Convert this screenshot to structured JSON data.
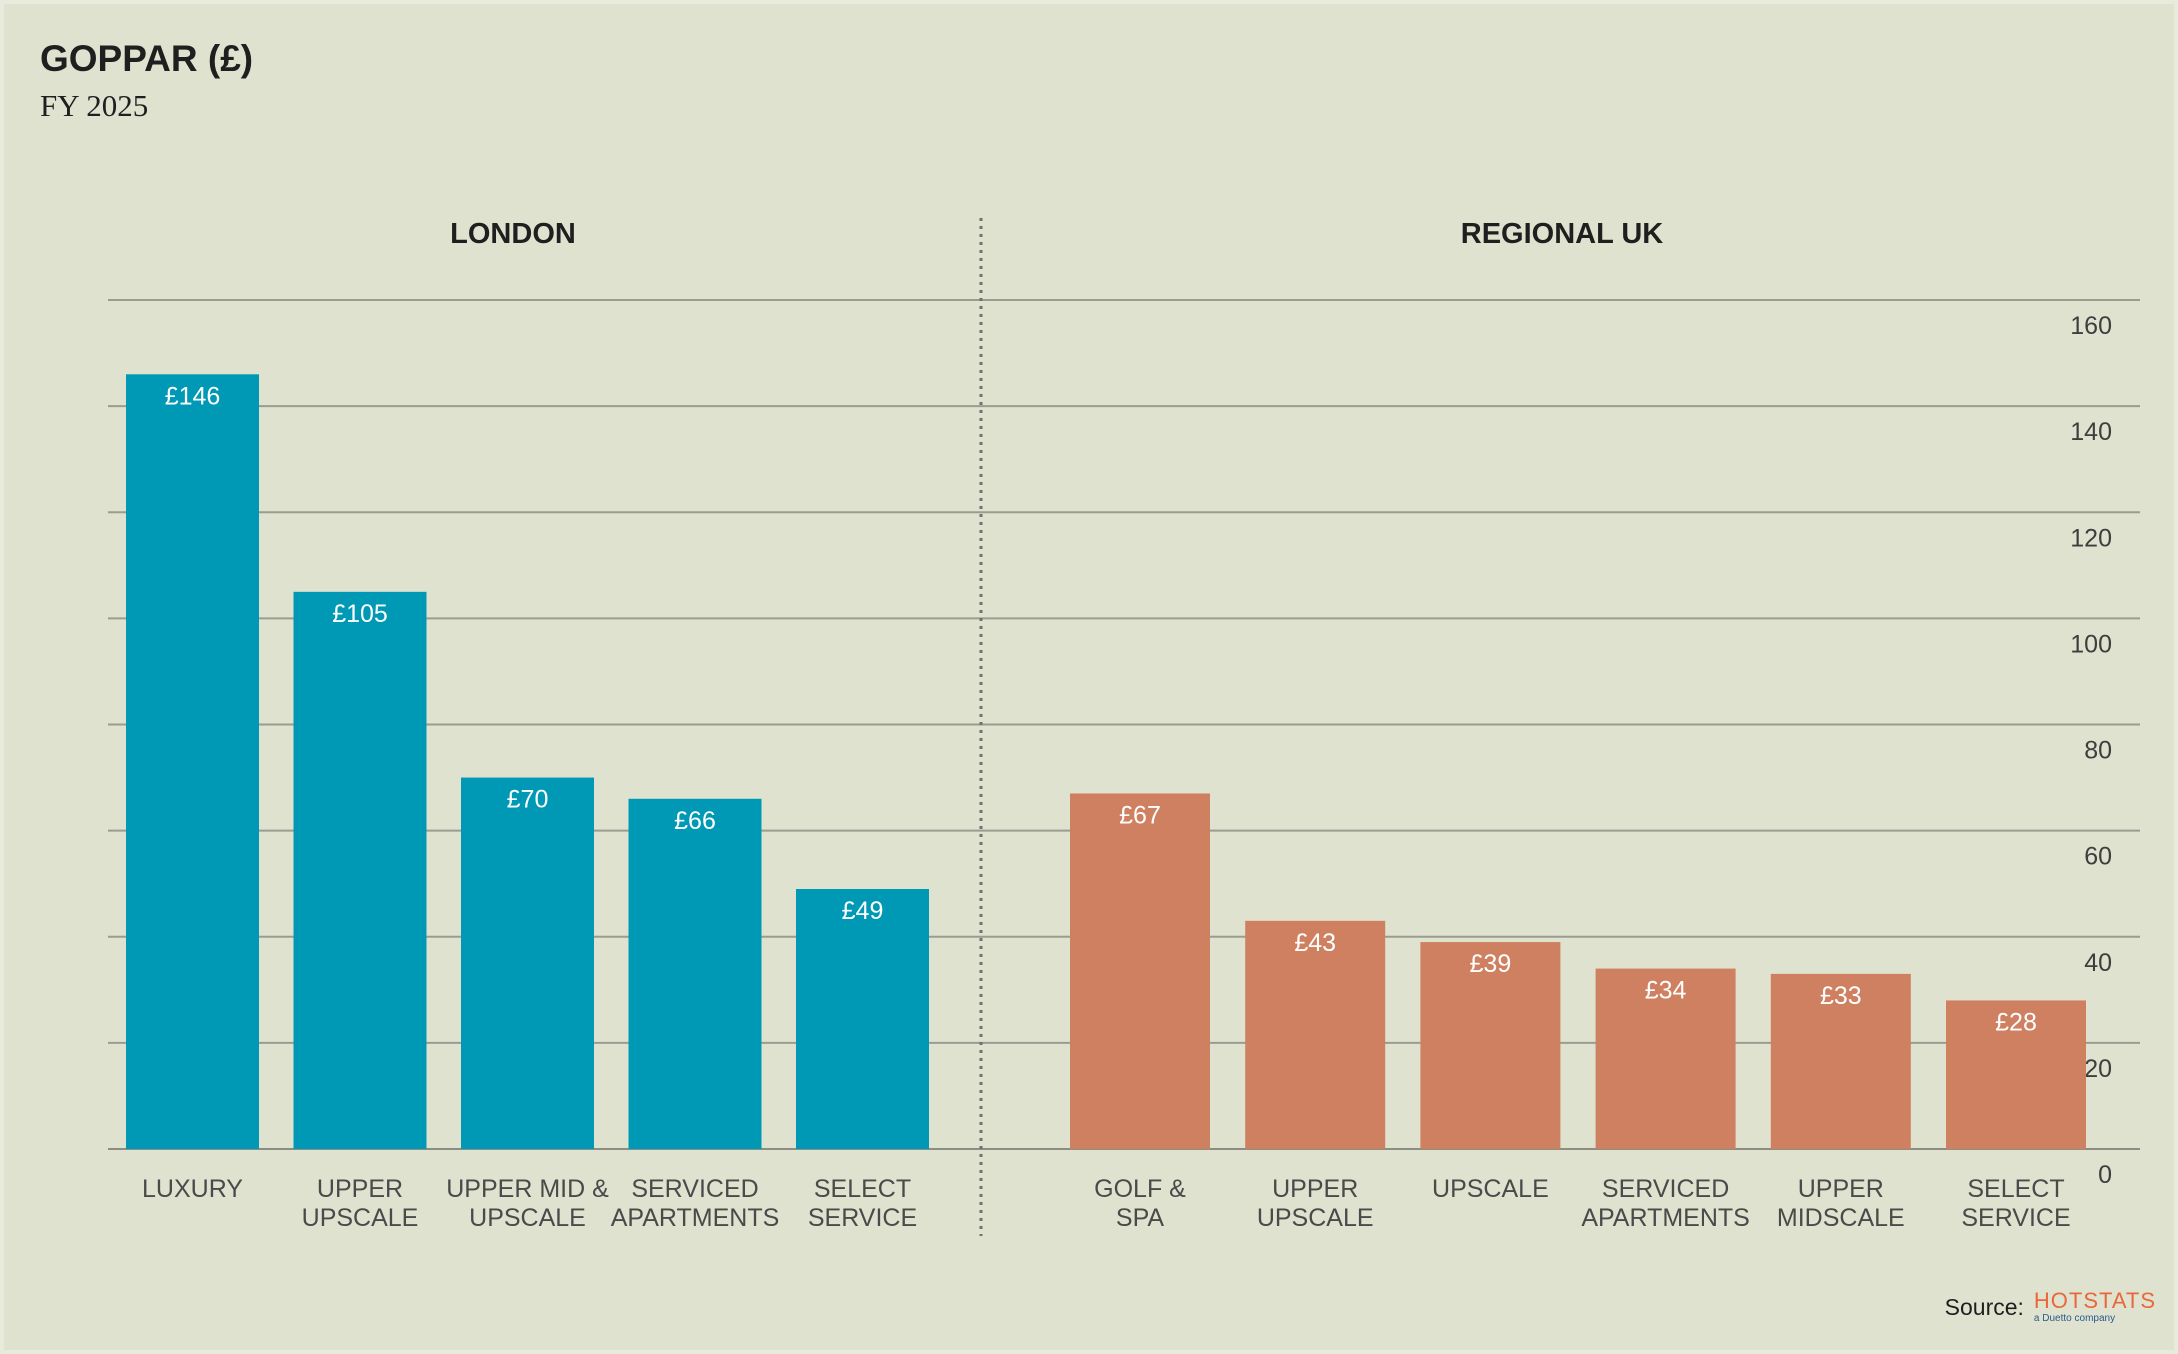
{
  "header": {
    "title": "GOPPAR (£)",
    "subtitle": "FY 2025"
  },
  "source": {
    "label": "Source:",
    "logo_text": "HOTSTATS",
    "logo_subtext": "a Duetto company"
  },
  "colors": {
    "background": "#dfe2cf",
    "london": "#0099b5",
    "regional": "#cf8060",
    "grid": "#9a9c90"
  },
  "chart_data": {
    "type": "bar",
    "title": "GOPPAR (£)",
    "subtitle": "FY 2025",
    "ylim": [
      0,
      160
    ],
    "yticks": [
      0,
      20,
      40,
      60,
      80,
      100,
      120,
      140,
      160
    ],
    "grid": true,
    "y_axis_position": "right",
    "value_prefix": "£",
    "panels": [
      {
        "name": "LONDON",
        "color": "#0099b5",
        "categories": [
          [
            "LUXURY"
          ],
          [
            "UPPER",
            "UPSCALE"
          ],
          [
            "UPPER MID &",
            "UPSCALE"
          ],
          [
            "SERVICED",
            "APARTMENTS"
          ],
          [
            "SELECT",
            "SERVICE"
          ]
        ],
        "values": [
          146,
          105,
          70,
          66,
          49
        ],
        "labels": [
          "£146",
          "£105",
          "£70",
          "£66",
          "£49"
        ]
      },
      {
        "name": "REGIONAL UK",
        "color": "#cf8060",
        "categories": [
          [
            "GOLF &",
            "SPA"
          ],
          [
            "UPPER",
            "UPSCALE"
          ],
          [
            "UPSCALE"
          ],
          [
            "SERVICED",
            "APARTMENTS"
          ],
          [
            "UPPER",
            "MIDSCALE"
          ],
          [
            "SELECT",
            "SERVICE"
          ]
        ],
        "values": [
          67,
          43,
          39,
          34,
          33,
          28
        ],
        "labels": [
          "£67",
          "£43",
          "£39",
          "£34",
          "£33",
          "£28"
        ]
      }
    ]
  }
}
